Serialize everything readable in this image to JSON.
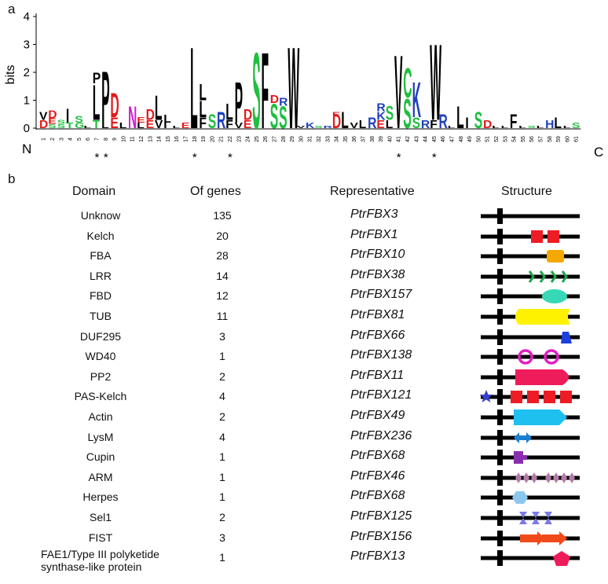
{
  "panel_a": {
    "label": "a",
    "y_axis_label": "bits",
    "y_ticks": [
      "0",
      "1",
      "2",
      "3",
      "4"
    ],
    "terminal_left": "N",
    "terminal_right": "C",
    "positions": [
      "1",
      "2",
      "3",
      "4",
      "5",
      "6",
      "7",
      "8",
      "9",
      "10",
      "11",
      "12",
      "13",
      "14",
      "15",
      "16",
      "17",
      "18",
      "19",
      "20",
      "21",
      "22",
      "23",
      "24",
      "25",
      "26",
      "27",
      "28",
      "29",
      "30",
      "31",
      "32",
      "33",
      "34",
      "35",
      "36",
      "37",
      "38",
      "39",
      "40",
      "41",
      "42",
      "43",
      "44",
      "45",
      "46",
      "47",
      "48",
      "49",
      "50",
      "51",
      "52",
      "53",
      "54",
      "55",
      "56",
      "57",
      "58",
      "59",
      "60",
      "61"
    ],
    "conserved_markers": [
      "*",
      "*",
      "*",
      "*",
      "*",
      "*"
    ],
    "colors": {
      "hydrophobic": "#000000",
      "acidic": "#e31a1c",
      "basic": "#1f3fbf",
      "polar": "#1fbf3f",
      "amide": "#d01fd0"
    }
  },
  "panel_b": {
    "label": "b",
    "headers": {
      "domain": "Domain",
      "genes": "Of genes",
      "representative": "Representative",
      "structure": "Structure"
    },
    "rows": [
      {
        "domain": "Unknow",
        "genes": "135",
        "representative": "PtrFBX3",
        "shape": "none"
      },
      {
        "domain": "Kelch",
        "genes": "20",
        "representative": "PtrFBX1",
        "shape": "kelch-squares"
      },
      {
        "domain": "FBA",
        "genes": "28",
        "representative": "PtrFBX10",
        "shape": "fba-box"
      },
      {
        "domain": "LRR",
        "genes": "14",
        "representative": "PtrFBX38",
        "shape": "lrr-chevrons"
      },
      {
        "domain": "FBD",
        "genes": "12",
        "representative": "PtrFBX157",
        "shape": "fbd-ellipse"
      },
      {
        "domain": "TUB",
        "genes": "11",
        "representative": "PtrFBX81",
        "shape": "tub-block"
      },
      {
        "domain": "DUF295",
        "genes": "3",
        "representative": "PtrFBX66",
        "shape": "duf-trapezoid"
      },
      {
        "domain": "WD40",
        "genes": "1",
        "representative": "PtrFBX138",
        "shape": "wd40-rings"
      },
      {
        "domain": "PP2",
        "genes": "2",
        "representative": "PtrFBX11",
        "shape": "pp2-bullet"
      },
      {
        "domain": "PAS-Kelch",
        "genes": "4",
        "representative": "PtrFBX121",
        "shape": "pas-kelch"
      },
      {
        "domain": "Actin",
        "genes": "2",
        "representative": "PtrFBX49",
        "shape": "actin-arrow"
      },
      {
        "domain": "LysM",
        "genes": "4",
        "representative": "PtrFBX236",
        "shape": "lysm-double-arrow"
      },
      {
        "domain": "Cupin",
        "genes": "1",
        "representative": "PtrFBX68",
        "shape": "cupin-block"
      },
      {
        "domain": "ARM",
        "genes": "1",
        "representative": "PtrFBX46",
        "shape": "arm-diamonds"
      },
      {
        "domain": "Herpes",
        "genes": "1",
        "representative": "PtrFBX68",
        "shape": "herpes-hexagon"
      },
      {
        "domain": "Sel1",
        "genes": "2",
        "representative": "PtrFBX125",
        "shape": "sel1-hourglass"
      },
      {
        "domain": "FIST",
        "genes": "3",
        "representative": "PtrFBX156",
        "shape": "fist-arrows"
      },
      {
        "domain": "FAE1/Type III polyketide",
        "domain_line2": "synthase-like protein",
        "genes": "1",
        "representative": "PtrFBX13",
        "shape": "fae1-pentagon"
      }
    ],
    "shape_colors": {
      "kelch": "#ee1c25",
      "fba": "#f5a800",
      "lrr": "#1aa64a",
      "fbd": "#36d8b8",
      "tub": "#fff200",
      "duf": "#1c3fe0",
      "wd40": "#e020c0",
      "pp2": "#ee1c5a",
      "pas": "#3a3fc8",
      "actin": "#1ec0f0",
      "lysm": "#1a7fd0",
      "cupin": "#8a2fb0",
      "arm": "#b47aa8",
      "herpes": "#8cc8ee",
      "sel1": "#7a7ae8",
      "fist": "#f04a1a",
      "fae1": "#ee1c5a"
    }
  }
}
